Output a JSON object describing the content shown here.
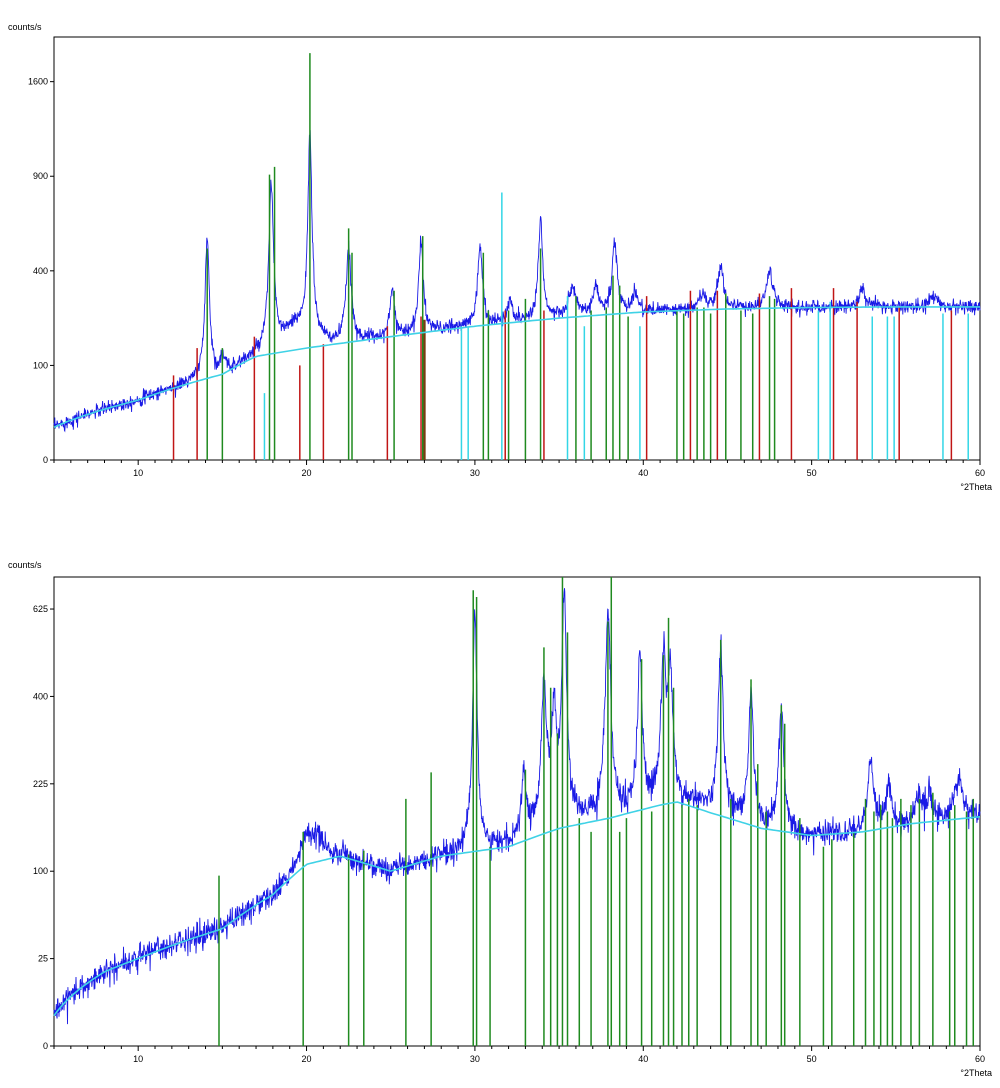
{
  "chart_data": [
    {
      "type": "line",
      "ylabel": "counts/s",
      "xlabel": "°2Theta",
      "xlim": [
        5,
        60
      ],
      "scale": "sqrt",
      "ylim": [
        0,
        2000
      ],
      "yticks": [
        0,
        100,
        400,
        900,
        1600
      ],
      "xticks": [
        10,
        20,
        30,
        40,
        50,
        60
      ],
      "grid": false,
      "colors": {
        "observed": "#1a1ae6",
        "background": "#3fd2e6",
        "green": "#1f8a1f",
        "red": "#c01515",
        "cyan": "#33d6e6",
        "brown": "#7a3a10"
      },
      "background": {
        "x": [
          5,
          10,
          15,
          17,
          20,
          25,
          30,
          35,
          40,
          45,
          50,
          55,
          60
        ],
        "y": [
          12,
          40,
          82,
          120,
          140,
          170,
          200,
          225,
          245,
          255,
          260,
          262,
          262
        ]
      },
      "peaks": [
        {
          "x": 14.1,
          "h": 500,
          "w": 0.12
        },
        {
          "x": 15.0,
          "h": 35,
          "w": 0.15
        },
        {
          "x": 17.9,
          "h": 720,
          "w": 0.14
        },
        {
          "x": 20.2,
          "h": 1000,
          "w": 0.12
        },
        {
          "x": 22.5,
          "h": 340,
          "w": 0.16
        },
        {
          "x": 25.1,
          "h": 160,
          "w": 0.14
        },
        {
          "x": 26.8,
          "h": 350,
          "w": 0.14
        },
        {
          "x": 30.3,
          "h": 300,
          "w": 0.16
        },
        {
          "x": 32.1,
          "h": 80,
          "w": 0.15
        },
        {
          "x": 33.9,
          "h": 430,
          "w": 0.14
        },
        {
          "x": 35.8,
          "h": 100,
          "w": 0.25
        },
        {
          "x": 37.2,
          "h": 90,
          "w": 0.2
        },
        {
          "x": 38.3,
          "h": 290,
          "w": 0.16
        },
        {
          "x": 39.5,
          "h": 70,
          "w": 0.2
        },
        {
          "x": 43.5,
          "h": 50,
          "w": 0.25
        },
        {
          "x": 44.6,
          "h": 160,
          "w": 0.2
        },
        {
          "x": 47.5,
          "h": 140,
          "w": 0.22
        },
        {
          "x": 53.0,
          "h": 70,
          "w": 0.2
        },
        {
          "x": 57.2,
          "h": 40,
          "w": 0.25
        }
      ],
      "bump": {
        "x": 19.5,
        "h": 60,
        "w": 1.2
      },
      "sticks": {
        "green": [
          [
            14.1,
            500
          ],
          [
            15.0,
            140
          ],
          [
            17.8,
            910
          ],
          [
            18.1,
            960
          ],
          [
            20.2,
            1850
          ],
          [
            22.5,
            600
          ],
          [
            22.7,
            480
          ],
          [
            25.2,
            320
          ],
          [
            26.9,
            560
          ],
          [
            30.5,
            480
          ],
          [
            30.8,
            250
          ],
          [
            32.0,
            250
          ],
          [
            33.0,
            290
          ],
          [
            33.9,
            500
          ],
          [
            36.0,
            300
          ],
          [
            36.9,
            250
          ],
          [
            37.8,
            260
          ],
          [
            38.2,
            380
          ],
          [
            38.6,
            340
          ],
          [
            39.1,
            230
          ],
          [
            42.0,
            250
          ],
          [
            42.4,
            240
          ],
          [
            43.2,
            260
          ],
          [
            43.6,
            260
          ],
          [
            44.0,
            240
          ],
          [
            44.9,
            310
          ],
          [
            45.8,
            250
          ],
          [
            46.5,
            240
          ],
          [
            47.5,
            300
          ],
          [
            47.8,
            290
          ]
        ],
        "red": [
          [
            12.1,
            80
          ],
          [
            13.5,
            140
          ],
          [
            16.9,
            170
          ],
          [
            19.6,
            100
          ],
          [
            21.0,
            150
          ],
          [
            24.8,
            200
          ],
          [
            26.8,
            230
          ],
          [
            31.8,
            250
          ],
          [
            34.1,
            250
          ],
          [
            40.2,
            300
          ],
          [
            42.8,
            320
          ],
          [
            44.4,
            320
          ],
          [
            46.9,
            310
          ],
          [
            48.8,
            330
          ],
          [
            51.3,
            330
          ],
          [
            52.7,
            280
          ],
          [
            55.2,
            260
          ],
          [
            58.3,
            250
          ]
        ],
        "cyan": [
          [
            17.5,
            50
          ],
          [
            29.2,
            200
          ],
          [
            29.6,
            200
          ],
          [
            31.6,
            800
          ],
          [
            35.5,
            300
          ],
          [
            36.5,
            200
          ],
          [
            39.8,
            200
          ],
          [
            50.4,
            250
          ],
          [
            51.1,
            280
          ],
          [
            53.6,
            230
          ],
          [
            54.5,
            230
          ],
          [
            54.9,
            230
          ],
          [
            57.8,
            240
          ],
          [
            59.3,
            240
          ]
        ],
        "brown": [
          [
            27.0,
            220
          ]
        ]
      }
    },
    {
      "type": "line",
      "ylabel": "counts/s",
      "xlabel": "°2Theta",
      "xlim": [
        5,
        60
      ],
      "scale": "sqrt",
      "ylim": [
        0,
        720
      ],
      "yticks": [
        0,
        25,
        100,
        225,
        400,
        625
      ],
      "xticks": [
        10,
        20,
        30,
        40,
        50,
        60
      ],
      "grid": false,
      "colors": {
        "observed": "#1a1ae6",
        "background": "#3fd2e6",
        "green": "#1f8a1f"
      },
      "background": {
        "x": [
          5,
          8,
          10,
          15,
          18,
          20,
          22,
          25,
          28,
          32,
          35,
          38,
          41,
          42,
          44,
          47,
          50,
          53,
          56,
          60
        ],
        "y": [
          3,
          18,
          25,
          45,
          75,
          108,
          118,
          100,
          118,
          130,
          155,
          170,
          190,
          195,
          178,
          155,
          145,
          150,
          162,
          172
        ]
      },
      "peaks": [
        {
          "x": 30.0,
          "h": 480,
          "w": 0.14
        },
        {
          "x": 32.9,
          "h": 100,
          "w": 0.15
        },
        {
          "x": 34.1,
          "h": 270,
          "w": 0.18
        },
        {
          "x": 34.7,
          "h": 200,
          "w": 0.16
        },
        {
          "x": 35.3,
          "h": 500,
          "w": 0.16
        },
        {
          "x": 37.9,
          "h": 440,
          "w": 0.18
        },
        {
          "x": 39.8,
          "h": 320,
          "w": 0.15
        },
        {
          "x": 41.2,
          "h": 300,
          "w": 0.16
        },
        {
          "x": 41.6,
          "h": 260,
          "w": 0.16
        },
        {
          "x": 44.6,
          "h": 350,
          "w": 0.16
        },
        {
          "x": 46.4,
          "h": 250,
          "w": 0.16
        },
        {
          "x": 48.2,
          "h": 230,
          "w": 0.16
        },
        {
          "x": 53.5,
          "h": 110,
          "w": 0.2
        },
        {
          "x": 54.6,
          "h": 60,
          "w": 0.2
        },
        {
          "x": 56.3,
          "h": 40,
          "w": 0.2
        },
        {
          "x": 57.0,
          "h": 40,
          "w": 0.2
        },
        {
          "x": 58.7,
          "h": 70,
          "w": 0.25
        }
      ],
      "bump": {
        "x": 20.3,
        "h": 40,
        "w": 1.0
      },
      "sticks": {
        "green": [
          [
            14.8,
            95
          ],
          [
            19.8,
            150
          ],
          [
            22.5,
            120
          ],
          [
            23.4,
            125
          ],
          [
            25.9,
            200
          ],
          [
            27.4,
            245
          ],
          [
            29.9,
            680
          ],
          [
            30.1,
            660
          ],
          [
            30.9,
            130
          ],
          [
            33.0,
            250
          ],
          [
            34.1,
            520
          ],
          [
            34.5,
            420
          ],
          [
            34.9,
            320
          ],
          [
            35.2,
            720
          ],
          [
            35.5,
            560
          ],
          [
            36.2,
            170
          ],
          [
            36.9,
            150
          ],
          [
            37.9,
            590
          ],
          [
            38.1,
            720
          ],
          [
            38.6,
            150
          ],
          [
            39.0,
            170
          ],
          [
            39.9,
            490
          ],
          [
            40.5,
            180
          ],
          [
            41.2,
            500
          ],
          [
            41.5,
            600
          ],
          [
            41.8,
            420
          ],
          [
            42.3,
            190
          ],
          [
            42.7,
            200
          ],
          [
            43.2,
            190
          ],
          [
            44.6,
            540
          ],
          [
            45.2,
            200
          ],
          [
            46.4,
            440
          ],
          [
            46.8,
            260
          ],
          [
            47.3,
            180
          ],
          [
            48.2,
            380
          ],
          [
            48.4,
            340
          ],
          [
            49.3,
            170
          ],
          [
            50.7,
            130
          ],
          [
            51.2,
            140
          ],
          [
            52.5,
            150
          ],
          [
            53.2,
            200
          ],
          [
            53.7,
            180
          ],
          [
            54.1,
            190
          ],
          [
            54.5,
            180
          ],
          [
            54.8,
            170
          ],
          [
            55.3,
            200
          ],
          [
            55.9,
            190
          ],
          [
            56.4,
            200
          ],
          [
            57.2,
            210
          ],
          [
            58.2,
            180
          ],
          [
            58.5,
            190
          ],
          [
            59.2,
            180
          ],
          [
            59.6,
            200
          ]
        ]
      }
    }
  ]
}
